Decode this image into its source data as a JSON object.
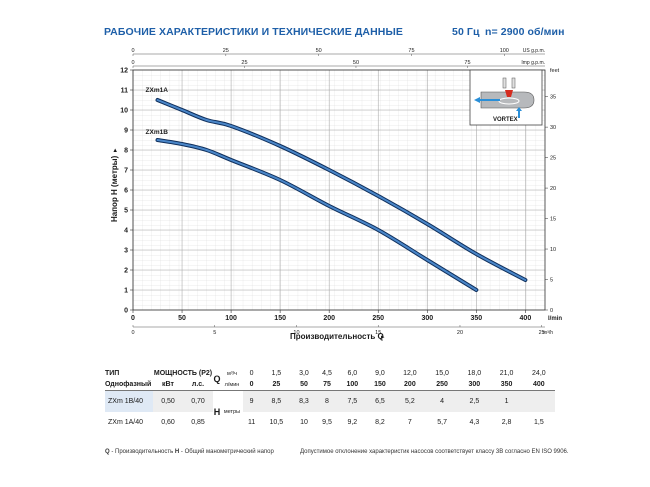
{
  "header": {
    "title": "РАБОЧИЕ ХАРАКТЕРИСТИКИ И ТЕХНИЧЕСКИЕ ДАННЫЕ",
    "frequency": "50 Гц",
    "speed": "n= 2900 об/мин"
  },
  "colors": {
    "accent": "#1e5fa8",
    "curve": "#234f8d",
    "grid": "#c9c9c9",
    "table_highlight": "#dfe9f5",
    "table_row": "#eeeeee"
  },
  "chart_data": {
    "type": "line",
    "xlabel": "Производительность Q",
    "ylabel": "Напор H (метры)",
    "x_unit": "l/min",
    "x_unit_m3h": "m³/h",
    "y_unit_feet": "feet",
    "top_unit_us": "US g.p.m.",
    "top_unit_imp": "Imp g.p.m.",
    "xlim": [
      0,
      420
    ],
    "ylim": [
      0,
      12
    ],
    "x_ticks": [
      "0",
      "50",
      "100",
      "150",
      "200",
      "250",
      "300",
      "350",
      "400"
    ],
    "y_ticks": [
      "0",
      "1",
      "2",
      "3",
      "4",
      "5",
      "6",
      "7",
      "8",
      "9",
      "10",
      "11",
      "12"
    ],
    "m3h_ticks": [
      "0",
      "5",
      "10",
      "15",
      "20",
      "25"
    ],
    "feet_ticks": [
      "0",
      "5",
      "10",
      "15",
      "20",
      "25",
      "30",
      "35"
    ],
    "us_ticks": [
      "0",
      "25",
      "50",
      "75",
      "100"
    ],
    "imp_ticks": [
      "0",
      "25",
      "50",
      "75"
    ],
    "series": [
      {
        "name": "ZXm1A",
        "x": [
          25,
          50,
          75,
          100,
          150,
          200,
          250,
          300,
          350,
          400
        ],
        "y": [
          10.5,
          10,
          9.5,
          9.2,
          8.2,
          7,
          5.7,
          4.3,
          2.8,
          1.5
        ]
      },
      {
        "name": "ZXm1B",
        "x": [
          25,
          50,
          75,
          100,
          150,
          200,
          250,
          300,
          350
        ],
        "y": [
          8.5,
          8.3,
          8,
          7.5,
          6.5,
          5.2,
          4,
          2.5,
          1
        ]
      }
    ],
    "inset_label": "VORTEX"
  },
  "table": {
    "head": {
      "type": "ТИП",
      "phase": "Однофазный",
      "power": "МОЩНОСТЬ (P2)",
      "kw": "кВт",
      "hp": "л.с.",
      "q": "Q",
      "m3h": "м³/ч",
      "lmin": "л/мин",
      "h": "H",
      "meters": "метры"
    },
    "q_m3h": [
      "0",
      "1,5",
      "3,0",
      "4,5",
      "6,0",
      "9,0",
      "12,0",
      "15,0",
      "18,0",
      "21,0",
      "24,0"
    ],
    "q_lmin": [
      "0",
      "25",
      "50",
      "75",
      "100",
      "150",
      "200",
      "250",
      "300",
      "350",
      "400"
    ],
    "rows": [
      {
        "model": "ZXm 1B/40",
        "kw": "0,50",
        "hp": "0,70",
        "h": [
          "9",
          "8,5",
          "8,3",
          "8",
          "7,5",
          "6,5",
          "5,2",
          "4",
          "2,5",
          "1",
          ""
        ]
      },
      {
        "model": "ZXm 1A/40",
        "kw": "0,60",
        "hp": "0,85",
        "h": [
          "11",
          "10,5",
          "10",
          "9,5",
          "9,2",
          "8,2",
          "7",
          "5,7",
          "4,3",
          "2,8",
          "1,5"
        ]
      }
    ]
  },
  "footer": {
    "legend_q": "Q",
    "legend_q_text": " - Производительность ",
    "legend_h": "H",
    "legend_h_text": " - Общий манометрический напор",
    "note": "Допустимое отклонение характеристик насосов соответствует классу 3В согласно EN ISO 9906."
  }
}
